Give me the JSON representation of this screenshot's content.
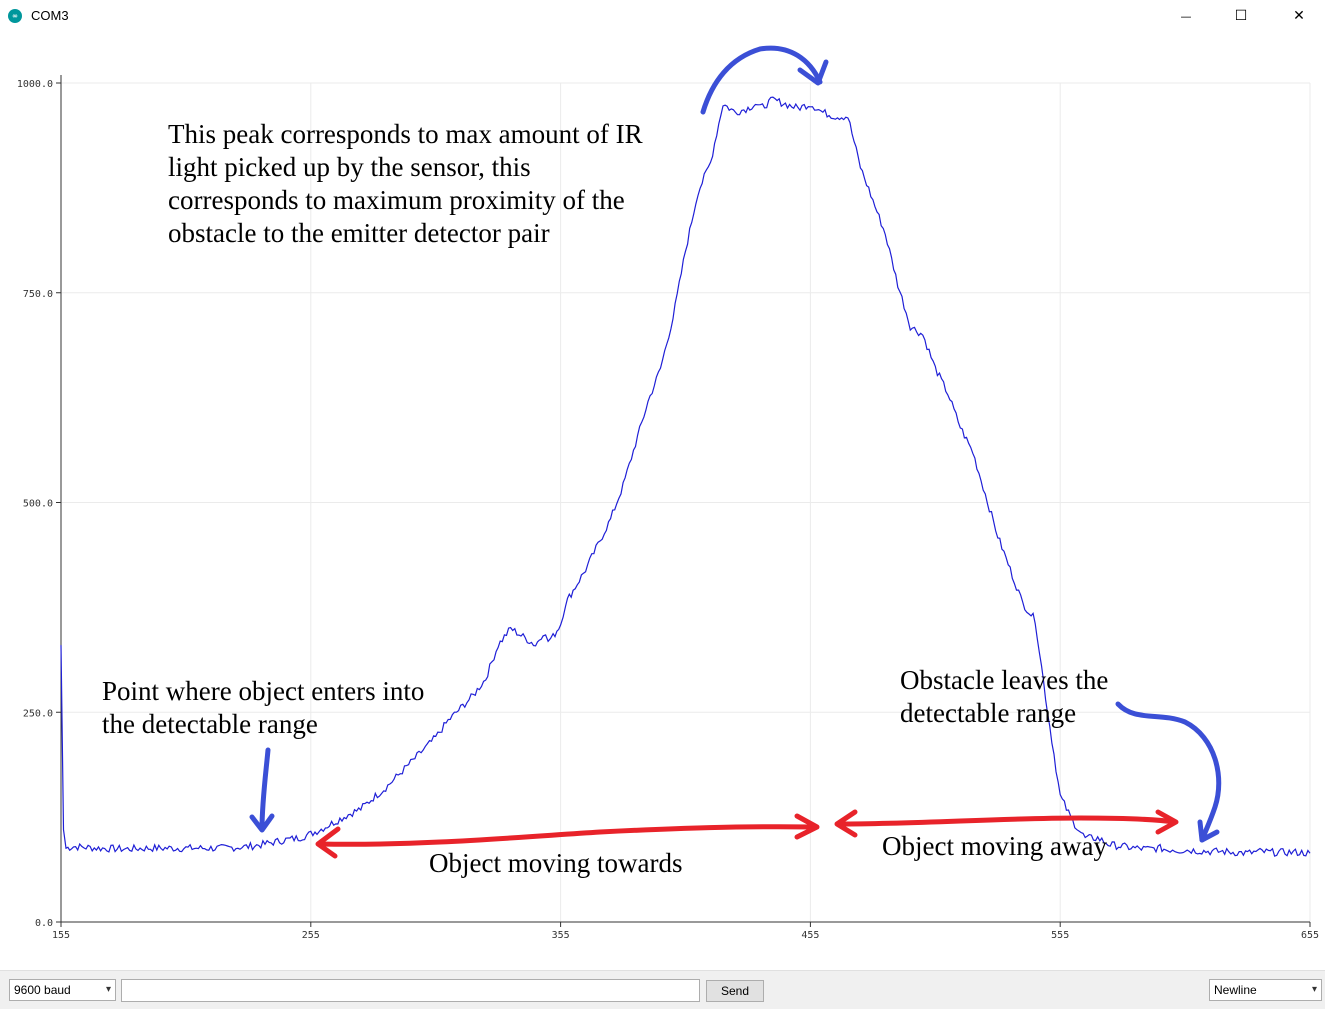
{
  "window": {
    "title": "COM3",
    "icon": "arduino-icon",
    "minimize_glyph": "—",
    "maximize_glyph": "☐",
    "close_glyph": "✕"
  },
  "chart_data": {
    "type": "line",
    "xlim": [
      155,
      655
    ],
    "ylim": [
      0,
      1000
    ],
    "x_ticks": [
      "155",
      "255",
      "355",
      "455",
      "555",
      "655"
    ],
    "y_ticks": [
      "0.0",
      "250.0",
      "500.0",
      "750.0",
      "1000.0"
    ],
    "grid": true,
    "series": [
      {
        "color": "#1f1fd6",
        "x": [
          155,
          156,
          157,
          160,
          170,
          180,
          190,
          200,
          210,
          220,
          230,
          235,
          240,
          245,
          250,
          255,
          260,
          265,
          270,
          275,
          280,
          285,
          290,
          295,
          300,
          305,
          310,
          315,
          320,
          325,
          330,
          335,
          340,
          345,
          348,
          350,
          352,
          355,
          357,
          360,
          365,
          370,
          375,
          380,
          385,
          390,
          395,
          400,
          405,
          410,
          415,
          420,
          425,
          430,
          433,
          435,
          440,
          445,
          450,
          455,
          460,
          465,
          470,
          475,
          480,
          485,
          490,
          495,
          500,
          505,
          510,
          515,
          520,
          525,
          530,
          535,
          540,
          545,
          550,
          555,
          560,
          565,
          570,
          575,
          580,
          585,
          590,
          595,
          598,
          600,
          602,
          605,
          610,
          615,
          620,
          625,
          630,
          635,
          640,
          645,
          650,
          655
        ],
        "y": [
          330,
          110,
          88,
          90,
          88,
          87,
          88,
          88,
          88,
          88,
          90,
          92,
          95,
          98,
          100,
          105,
          112,
          120,
          128,
          135,
          148,
          160,
          175,
          190,
          205,
          220,
          240,
          255,
          270,
          290,
          330,
          350,
          340,
          330,
          345,
          335,
          340,
          355,
          380,
          395,
          420,
          450,
          480,
          520,
          570,
          620,
          660,
          720,
          800,
          870,
          905,
          975,
          965,
          970,
          975,
          970,
          980,
          975,
          970,
          975,
          965,
          960,
          960,
          900,
          860,
          820,
          760,
          710,
          700,
          660,
          630,
          590,
          560,
          510,
          460,
          420,
          380,
          360,
          250,
          150,
          120,
          100,
          100,
          92,
          90,
          88,
          87,
          88,
          86,
          87,
          85,
          86,
          85,
          84,
          84,
          83,
          82,
          84,
          83,
          83,
          83,
          82
        ]
      }
    ]
  },
  "annotations": {
    "peak_text": [
      "This peak corresponds to max amount of IR",
      "light picked up by the sensor, this",
      "corresponds to maximum proximity of the",
      "obstacle to the emitter detector pair"
    ],
    "enter_text": [
      "Point where object enters into",
      "the detectable range"
    ],
    "leave_text": [
      "Obstacle leaves the",
      "detectable range"
    ],
    "towards_text": "Object moving towards",
    "away_text": "Object moving away",
    "arrow_color_blue": "#3b4fd6",
    "arrow_color_red": "#e8232a"
  },
  "bottombar": {
    "baud_value": "9600 baud",
    "input_value": "",
    "send_label": "Send",
    "line_ending_value": "Newline"
  }
}
